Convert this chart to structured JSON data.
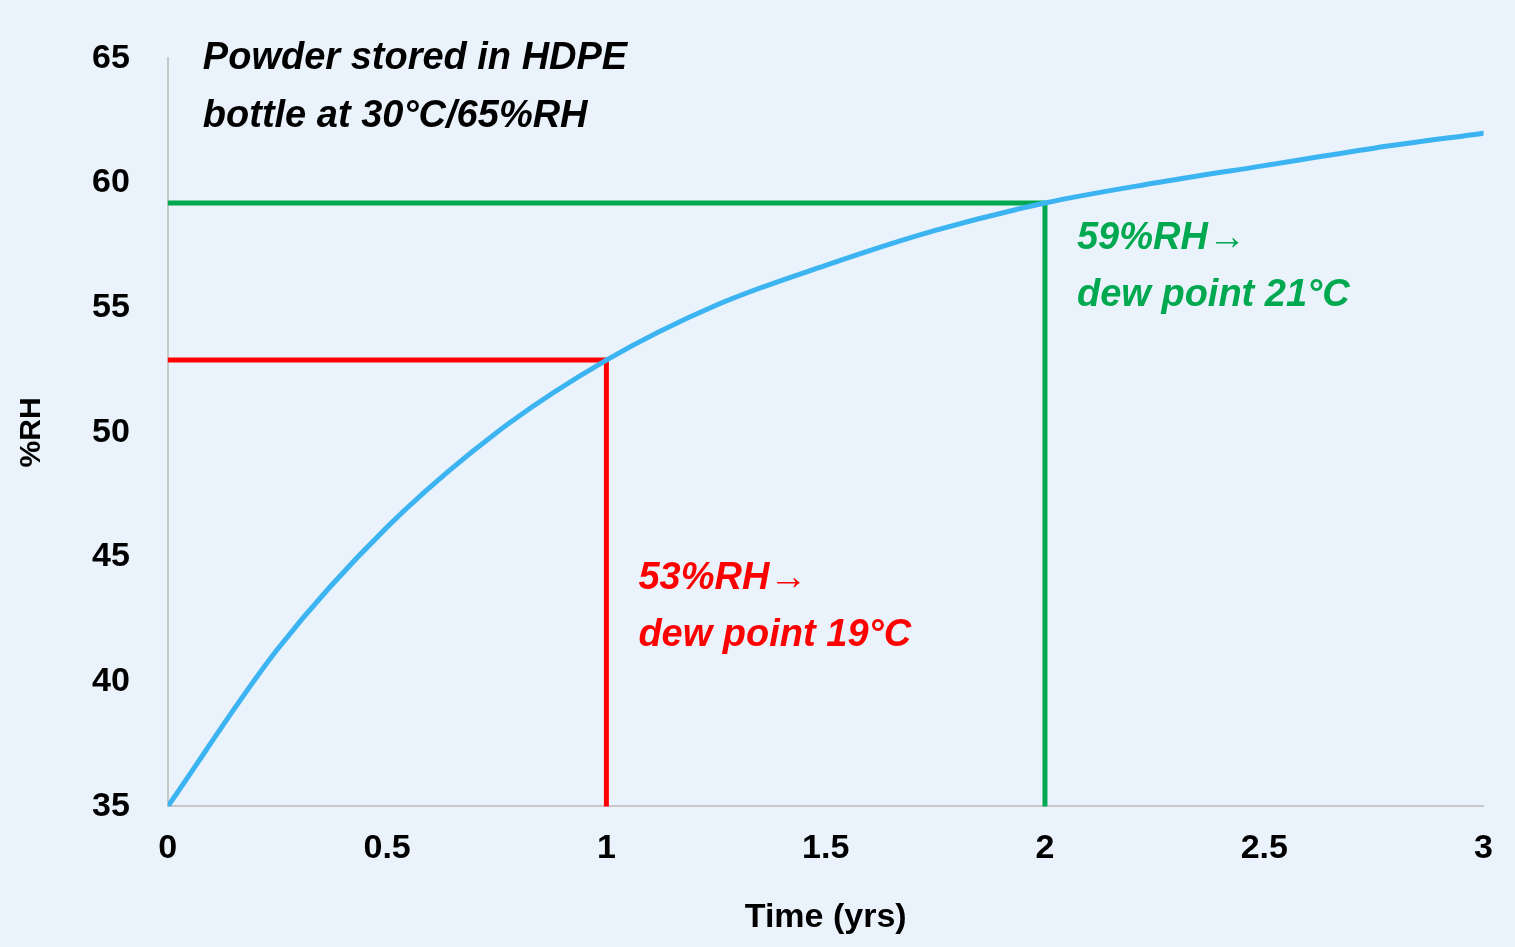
{
  "chart_data": {
    "type": "line",
    "title": "Powder stored in HDPE\nbottle at 30°C/65%RH",
    "xlabel": "Time (yrs)",
    "ylabel": "%RH",
    "series": [
      {
        "type": "line",
        "color": "#3db4f2",
        "x": [
          0,
          0.25,
          0.5,
          0.75,
          1,
          1.25,
          1.5,
          1.75,
          2,
          2.25,
          2.5,
          2.75,
          3
        ],
        "values": [
          35,
          41.3,
          46.2,
          50.0,
          52.9,
          55.1,
          56.7,
          58.1,
          59.2,
          60.0,
          60.7,
          61.4,
          62.0
        ]
      },
      {
        "type": "line",
        "color": "#ff0000",
        "x": [
          0,
          1,
          1
        ],
        "values": [
          52.9,
          52.9,
          35
        ]
      },
      {
        "type": "line",
        "color": "#00a84f",
        "x": [
          0,
          2,
          2
        ],
        "values": [
          59.2,
          59.2,
          35
        ]
      }
    ],
    "annotations": [
      "53%RH→\ndew point 19°C",
      "59%RH→\ndew point 21°C"
    ],
    "xlim": [
      0,
      3
    ],
    "xticks": [
      0,
      0.5,
      1,
      1.5,
      2,
      2.5,
      3
    ],
    "ylim": [
      35,
      65
    ],
    "yticks": [
      35,
      40,
      45,
      50,
      55,
      60,
      65
    ],
    "grid": false,
    "legend": false,
    "marker": "none",
    "line_style": "solid"
  }
}
